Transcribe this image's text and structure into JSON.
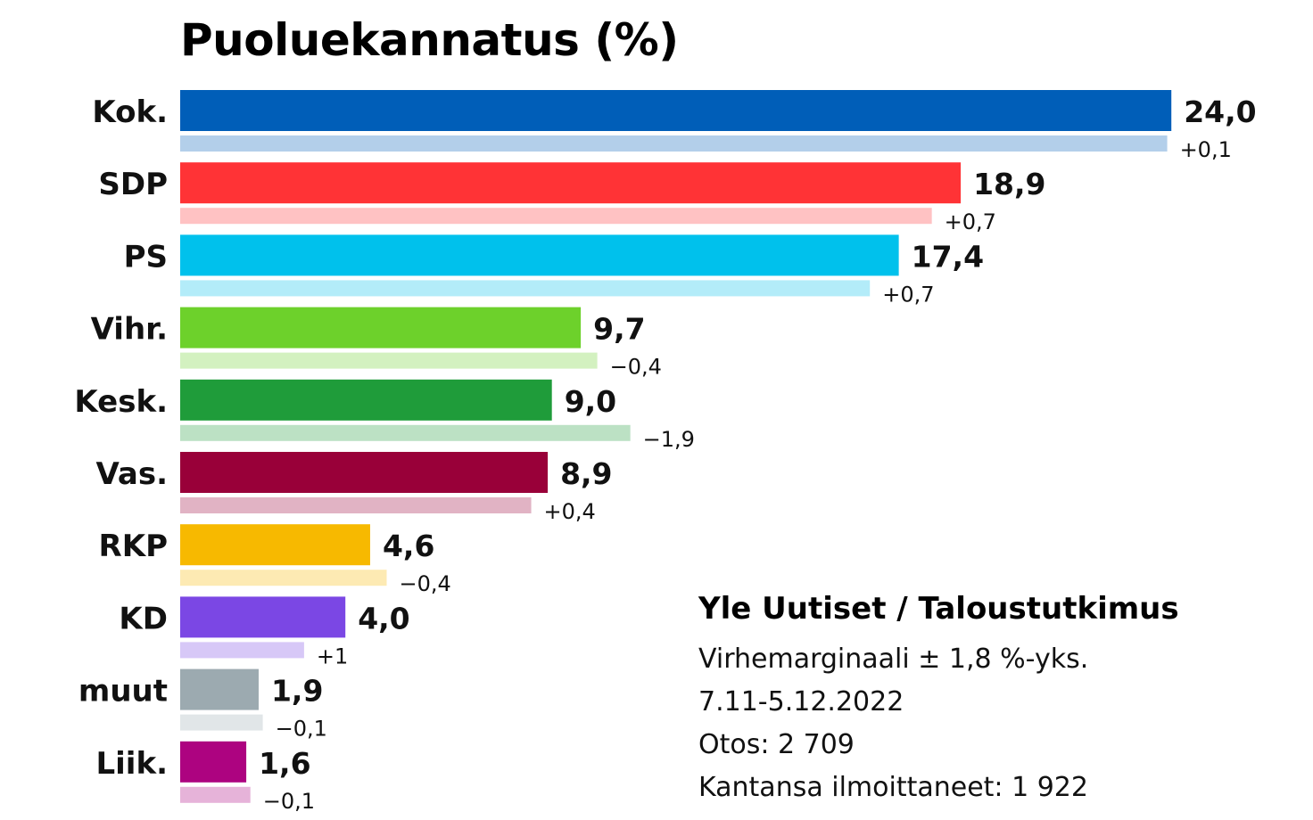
{
  "chart_data": {
    "type": "bar",
    "orientation": "horizontal",
    "title": "Puoluekannatus (%)",
    "categories": [
      "Kok.",
      "SDP",
      "PS",
      "Vihr.",
      "Kesk.",
      "Vas.",
      "RKP",
      "KD",
      "muut",
      "Liik."
    ],
    "values": [
      24.0,
      18.9,
      17.4,
      9.7,
      9.0,
      8.9,
      4.6,
      4.0,
      1.9,
      1.6
    ],
    "value_labels": [
      "24,0",
      "18,9",
      "17,4",
      "9,7",
      "9,0",
      "8,9",
      "4,6",
      "4,0",
      "1,9",
      "1,6"
    ],
    "previous_values": [
      23.9,
      18.2,
      16.7,
      10.1,
      10.9,
      8.5,
      5.0,
      3.0,
      2.0,
      1.7
    ],
    "change_labels": [
      "+0,1",
      "+0,7",
      "+0,7",
      "−0,4",
      "−1,9",
      "+0,4",
      "−0,4",
      "+1",
      "−0,1",
      "−0,1"
    ],
    "colors": [
      "#005EB8",
      "#FF3336",
      "#00C1EC",
      "#6DD12B",
      "#1F9C3A",
      "#990039",
      "#F7B900",
      "#7B47E4",
      "#9CAAB0",
      "#AD0380"
    ],
    "previous_colors": [
      "#B3CFEA",
      "#FFC2C3",
      "#B3ECF9",
      "#D3F1C0",
      "#BCE1C4",
      "#E1B3C4",
      "#FDEAB3",
      "#D7C8F7",
      "#E1E6E8",
      "#E6B3D9"
    ],
    "xlim": [
      0,
      24
    ],
    "grid": false,
    "legend": "none"
  },
  "info": {
    "source": "Yle Uutiset / Taloustutkimus",
    "lines": [
      "Virhemarginaali ± 1,8 %-yks.",
      "7.11-5.12.2022",
      "Otos: 2 709",
      "Kantansa ilmoittaneet: 1 922"
    ]
  }
}
